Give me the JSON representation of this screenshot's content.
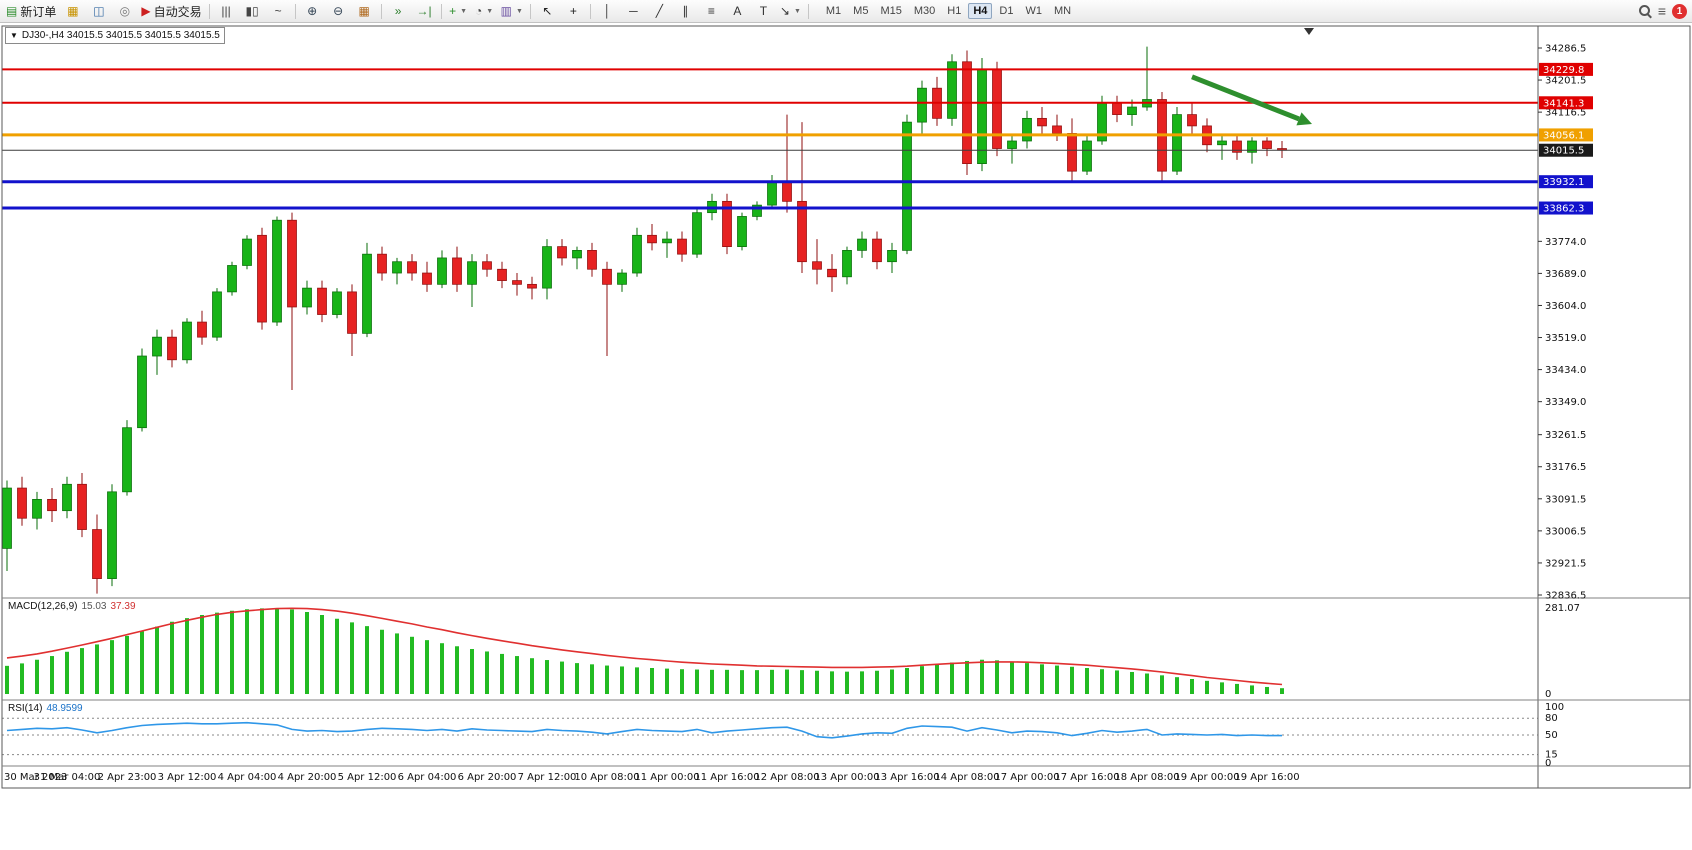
{
  "toolbar": {
    "items": [
      {
        "name": "new-order-button",
        "glyph": "▤",
        "color": "#2f8f2f",
        "label": "新订单"
      },
      {
        "name": "market-watch-button",
        "glyph": "▦",
        "color": "#c89300"
      },
      {
        "name": "data-window-button",
        "glyph": "◫",
        "color": "#3a6ea5"
      },
      {
        "name": "market-depth-button",
        "glyph": "◎",
        "color": "#777777"
      },
      {
        "name": "auto-trading-button",
        "glyph": "▶",
        "color": "#cc2020",
        "label": "自动交易"
      },
      {
        "separator": true
      },
      {
        "name": "bar-chart-button",
        "glyph": "|||",
        "color": "#444444"
      },
      {
        "name": "candlestick-chart-button",
        "glyph": "▮▯",
        "color": "#444444"
      },
      {
        "name": "line-chart-button",
        "glyph": "~",
        "color": "#444444"
      },
      {
        "separator": true
      },
      {
        "name": "zoom-in-button",
        "glyph": "⊕",
        "color": "#334455"
      },
      {
        "name": "zoom-out-button",
        "glyph": "⊖",
        "color": "#334455"
      },
      {
        "name": "tile-windows-button",
        "glyph": "▦",
        "color": "#b06a20"
      },
      {
        "separator": true
      },
      {
        "name": "auto-scroll-button",
        "glyph": "»",
        "color": "#2f7f2f"
      },
      {
        "name": "chart-shift-button",
        "glyph": "→|",
        "color": "#2f7f2f"
      },
      {
        "separator": true
      },
      {
        "name": "indicators-button",
        "glyph": "+",
        "color": "#2f8f2f",
        "dropdown": true
      },
      {
        "name": "periods-button",
        "glyph": "◔",
        "color": "#444444",
        "dropdown": true
      },
      {
        "name": "templates-button",
        "glyph": "▥",
        "color": "#6a4fa0",
        "dropdown": true
      },
      {
        "separator": true
      },
      {
        "name": "cursor-button",
        "glyph": "↖",
        "color": "#222222"
      },
      {
        "name": "crosshair-button",
        "glyph": "+",
        "color": "#222222"
      },
      {
        "separator": true
      },
      {
        "name": "vertical-line-button",
        "glyph": "│",
        "color": "#333333"
      },
      {
        "name": "horizontal-line-button",
        "glyph": "─",
        "color": "#333333"
      },
      {
        "name": "trendline-button",
        "glyph": "╱",
        "color": "#333333"
      },
      {
        "name": "equidistant-channel-button",
        "glyph": "∥",
        "color": "#333333"
      },
      {
        "name": "fibonacci-button",
        "glyph": "≡",
        "color": "#333333"
      },
      {
        "name": "text-button",
        "glyph": "A",
        "color": "#333333"
      },
      {
        "name": "text-label-button",
        "glyph": "T",
        "color": "#333333"
      },
      {
        "name": "arrows-tool-button",
        "glyph": "↘",
        "color": "#333333",
        "dropdown": true
      },
      {
        "separator": true
      }
    ],
    "timeframes": {
      "options": [
        "M1",
        "M5",
        "M15",
        "M30",
        "H1",
        "H4",
        "D1",
        "W1",
        "MN"
      ],
      "active": "H4"
    },
    "notification_count": "1"
  },
  "chart": {
    "title": "DJ30-,H4 34015.5 34015.5 34015.5 34015.5",
    "symbol": "DJ30-",
    "period": "H4",
    "ohlc_display": [
      "34015.5",
      "34015.5",
      "34015.5",
      "34015.5"
    ]
  },
  "chart_data": {
    "main": {
      "type": "candlestick",
      "symbol": "DJ30-",
      "timeframe": "H4",
      "ylim": [
        32836.5,
        34286.5
      ],
      "up_color": "#18b418",
      "down_color": "#e62222",
      "y_tick_labels": [
        "34286.5",
        "34201.5",
        "34116.5",
        "33774.0",
        "33689.0",
        "33604.0",
        "33519.0",
        "33434.0",
        "33349.0",
        "33261.5",
        "33176.5",
        "33091.5",
        "33006.5",
        "32921.5",
        "32836.5"
      ],
      "x_labels": [
        "30 Mar 2023",
        "31 Mar 04:00",
        "2 Apr 23:00",
        "3 Apr 12:00",
        "4 Apr 04:00",
        "4 Apr 20:00",
        "5 Apr 12:00",
        "6 Apr 04:00",
        "6 Apr 20:00",
        "7 Apr 12:00",
        "10 Apr 08:00",
        "11 Apr 00:00",
        "11 Apr 16:00",
        "12 Apr 08:00",
        "13 Apr 00:00",
        "13 Apr 16:00",
        "14 Apr 08:00",
        "17 Apr 00:00",
        "17 Apr 16:00",
        "18 Apr 08:00",
        "19 Apr 00:00",
        "19 Apr 16:00"
      ],
      "candles_per_label": 4,
      "current_price": 34015.5,
      "levels": [
        {
          "label": "34229.8",
          "price": 34229.8,
          "color": "#e00000",
          "width": 2,
          "role": "resistance-line"
        },
        {
          "label": "34141.3",
          "price": 34141.3,
          "color": "#e00000",
          "width": 2,
          "role": "resistance-line"
        },
        {
          "label": "34056.1",
          "price": 34056.1,
          "color": "#f0a000",
          "width": 3,
          "role": "pivot-line"
        },
        {
          "label": "34015.5",
          "price": 34015.5,
          "color": "#3c3c3c",
          "width": 1,
          "role": "current-price-line"
        },
        {
          "label": "33932.1",
          "price": 33932.1,
          "color": "#1212cc",
          "width": 3,
          "role": "support-line"
        },
        {
          "label": "33862.3",
          "price": 33862.3,
          "color": "#1212cc",
          "width": 3,
          "role": "support-line"
        }
      ],
      "annotation_arrow": {
        "from_index": 79,
        "from_price": 34210,
        "to_index": 87,
        "to_price": 34085,
        "color": "#2e8f2e",
        "width": 5
      },
      "ohlc": [
        [
          32960,
          33140,
          32900,
          33120
        ],
        [
          33120,
          33150,
          33020,
          33040
        ],
        [
          33040,
          33110,
          33010,
          33090
        ],
        [
          33090,
          33120,
          33030,
          33060
        ],
        [
          33060,
          33150,
          33040,
          33130
        ],
        [
          33130,
          33160,
          32990,
          33010
        ],
        [
          33010,
          33050,
          32840,
          32880
        ],
        [
          32880,
          33130,
          32860,
          33110
        ],
        [
          33110,
          33300,
          33100,
          33280
        ],
        [
          33280,
          33490,
          33270,
          33470
        ],
        [
          33470,
          33540,
          33420,
          33520
        ],
        [
          33520,
          33540,
          33440,
          33460
        ],
        [
          33460,
          33570,
          33450,
          33560
        ],
        [
          33560,
          33590,
          33500,
          33520
        ],
        [
          33520,
          33650,
          33510,
          33640
        ],
        [
          33640,
          33720,
          33630,
          33710
        ],
        [
          33710,
          33790,
          33700,
          33780
        ],
        [
          33790,
          33810,
          33540,
          33560
        ],
        [
          33560,
          33840,
          33550,
          33830
        ],
        [
          33830,
          33850,
          33380,
          33600
        ],
        [
          33600,
          33670,
          33580,
          33650
        ],
        [
          33650,
          33670,
          33560,
          33580
        ],
        [
          33580,
          33650,
          33570,
          33640
        ],
        [
          33640,
          33660,
          33470,
          33530
        ],
        [
          33530,
          33770,
          33520,
          33740
        ],
        [
          33740,
          33760,
          33670,
          33690
        ],
        [
          33690,
          33730,
          33660,
          33720
        ],
        [
          33720,
          33740,
          33670,
          33690
        ],
        [
          33690,
          33720,
          33640,
          33660
        ],
        [
          33660,
          33750,
          33650,
          33730
        ],
        [
          33730,
          33760,
          33640,
          33660
        ],
        [
          33660,
          33740,
          33600,
          33720
        ],
        [
          33720,
          33740,
          33680,
          33700
        ],
        [
          33700,
          33720,
          33650,
          33670
        ],
        [
          33670,
          33690,
          33630,
          33660
        ],
        [
          33660,
          33680,
          33620,
          33650
        ],
        [
          33650,
          33780,
          33620,
          33760
        ],
        [
          33760,
          33780,
          33710,
          33730
        ],
        [
          33730,
          33760,
          33700,
          33750
        ],
        [
          33750,
          33770,
          33680,
          33700
        ],
        [
          33700,
          33720,
          33470,
          33660
        ],
        [
          33660,
          33700,
          33640,
          33690
        ],
        [
          33690,
          33810,
          33680,
          33790
        ],
        [
          33790,
          33820,
          33750,
          33770
        ],
        [
          33770,
          33800,
          33730,
          33780
        ],
        [
          33780,
          33800,
          33720,
          33740
        ],
        [
          33740,
          33860,
          33730,
          33850
        ],
        [
          33850,
          33900,
          33830,
          33880
        ],
        [
          33880,
          33900,
          33740,
          33760
        ],
        [
          33760,
          33850,
          33750,
          33840
        ],
        [
          33840,
          33880,
          33830,
          33870
        ],
        [
          33870,
          33950,
          33860,
          33930
        ],
        [
          33930,
          34110,
          33850,
          33880
        ],
        [
          33880,
          34090,
          33690,
          33720
        ],
        [
          33720,
          33780,
          33660,
          33700
        ],
        [
          33700,
          33740,
          33640,
          33680
        ],
        [
          33680,
          33760,
          33660,
          33750
        ],
        [
          33750,
          33800,
          33730,
          33780
        ],
        [
          33780,
          33800,
          33700,
          33720
        ],
        [
          33720,
          33770,
          33690,
          33750
        ],
        [
          33750,
          34110,
          33740,
          34090
        ],
        [
          34090,
          34200,
          34060,
          34180
        ],
        [
          34180,
          34210,
          34080,
          34100
        ],
        [
          34100,
          34270,
          34080,
          34250
        ],
        [
          34250,
          34280,
          33950,
          33980
        ],
        [
          33980,
          34260,
          33960,
          34230
        ],
        [
          34230,
          34250,
          34000,
          34020
        ],
        [
          34020,
          34060,
          33980,
          34040
        ],
        [
          34040,
          34120,
          34020,
          34100
        ],
        [
          34100,
          34130,
          34060,
          34080
        ],
        [
          34080,
          34110,
          34040,
          34060
        ],
        [
          34060,
          34100,
          33930,
          33960
        ],
        [
          33960,
          34060,
          33950,
          34040
        ],
        [
          34040,
          34160,
          34030,
          34140
        ],
        [
          34140,
          34160,
          34090,
          34110
        ],
        [
          34110,
          34150,
          34080,
          34130
        ],
        [
          34130,
          34290,
          34120,
          34150
        ],
        [
          34150,
          34170,
          33930,
          33960
        ],
        [
          33960,
          34130,
          33950,
          34110
        ],
        [
          34110,
          34140,
          34060,
          34080
        ],
        [
          34080,
          34100,
          34010,
          34030
        ],
        [
          34030,
          34060,
          33990,
          34040
        ],
        [
          34040,
          34060,
          33990,
          34010
        ],
        [
          34010,
          34050,
          33980,
          34040
        ],
        [
          34040,
          34050,
          34000,
          34020
        ],
        [
          34020,
          34040,
          33995,
          34015.5
        ]
      ]
    },
    "macd": {
      "type": "bar",
      "label": "MACD(12,26,9)",
      "value": "15.03",
      "signal_value": "37.39",
      "ylim": [
        0,
        281.07
      ],
      "y_tick_labels": [
        "281.07",
        "0"
      ],
      "histogram_color": "#22bb22",
      "signal_color": "#e03030",
      "histogram": [
        92,
        100,
        112,
        124,
        138,
        150,
        162,
        176,
        190,
        205,
        220,
        236,
        248,
        258,
        266,
        272,
        277,
        280,
        281,
        276,
        268,
        258,
        246,
        234,
        222,
        210,
        198,
        187,
        176,
        166,
        156,
        147,
        139,
        131,
        124,
        117,
        111,
        106,
        101,
        97,
        93,
        90,
        87,
        85,
        83,
        81,
        80,
        79,
        79,
        78,
        78,
        79,
        80,
        78,
        76,
        74,
        73,
        74,
        76,
        80,
        85,
        91,
        97,
        103,
        108,
        112,
        110,
        106,
        101,
        97,
        93,
        89,
        85,
        81,
        77,
        72,
        67,
        61,
        55,
        49,
        43,
        38,
        33,
        28,
        23,
        19
      ],
      "signal": [
        118,
        124,
        131,
        140,
        150,
        160,
        171,
        182,
        194,
        206,
        218,
        230,
        241,
        251,
        260,
        267,
        272,
        276,
        279,
        280,
        279,
        276,
        271,
        264,
        256,
        247,
        238,
        229,
        219,
        210,
        200,
        191,
        182,
        174,
        166,
        158,
        151,
        144,
        138,
        132,
        126,
        121,
        116,
        112,
        108,
        104,
        101,
        98,
        96,
        94,
        92,
        91,
        90,
        89,
        88,
        87,
        87,
        87,
        88,
        89,
        91,
        94,
        97,
        100,
        102,
        104,
        105,
        105,
        104,
        102,
        100,
        97,
        94,
        90,
        86,
        82,
        77,
        72,
        66,
        60,
        54,
        49,
        44,
        39,
        35,
        31
      ]
    },
    "rsi": {
      "type": "line",
      "label": "RSI(14)",
      "value": "48.9599",
      "ylim": [
        0,
        100
      ],
      "levels": [
        80,
        50,
        15
      ],
      "y_tick_labels": [
        "100",
        "80",
        "50",
        "15",
        "0"
      ],
      "line_color": "#2f97e8",
      "values": [
        58,
        60,
        62,
        61,
        63,
        59,
        54,
        58,
        63,
        67,
        69,
        70,
        71,
        70,
        70,
        71,
        72,
        70,
        68,
        60,
        57,
        58,
        56,
        57,
        60,
        62,
        61,
        60,
        58,
        60,
        57,
        61,
        59,
        58,
        57,
        56,
        60,
        58,
        57,
        55,
        52,
        56,
        60,
        58,
        57,
        56,
        60,
        54,
        57,
        59,
        61,
        63,
        64,
        57,
        47,
        45,
        48,
        52,
        54,
        53,
        62,
        66,
        65,
        64,
        57,
        63,
        59,
        54,
        57,
        56,
        54,
        49,
        53,
        58,
        55,
        57,
        60,
        50,
        52,
        51,
        50,
        51,
        49,
        50,
        49,
        49
      ]
    }
  }
}
